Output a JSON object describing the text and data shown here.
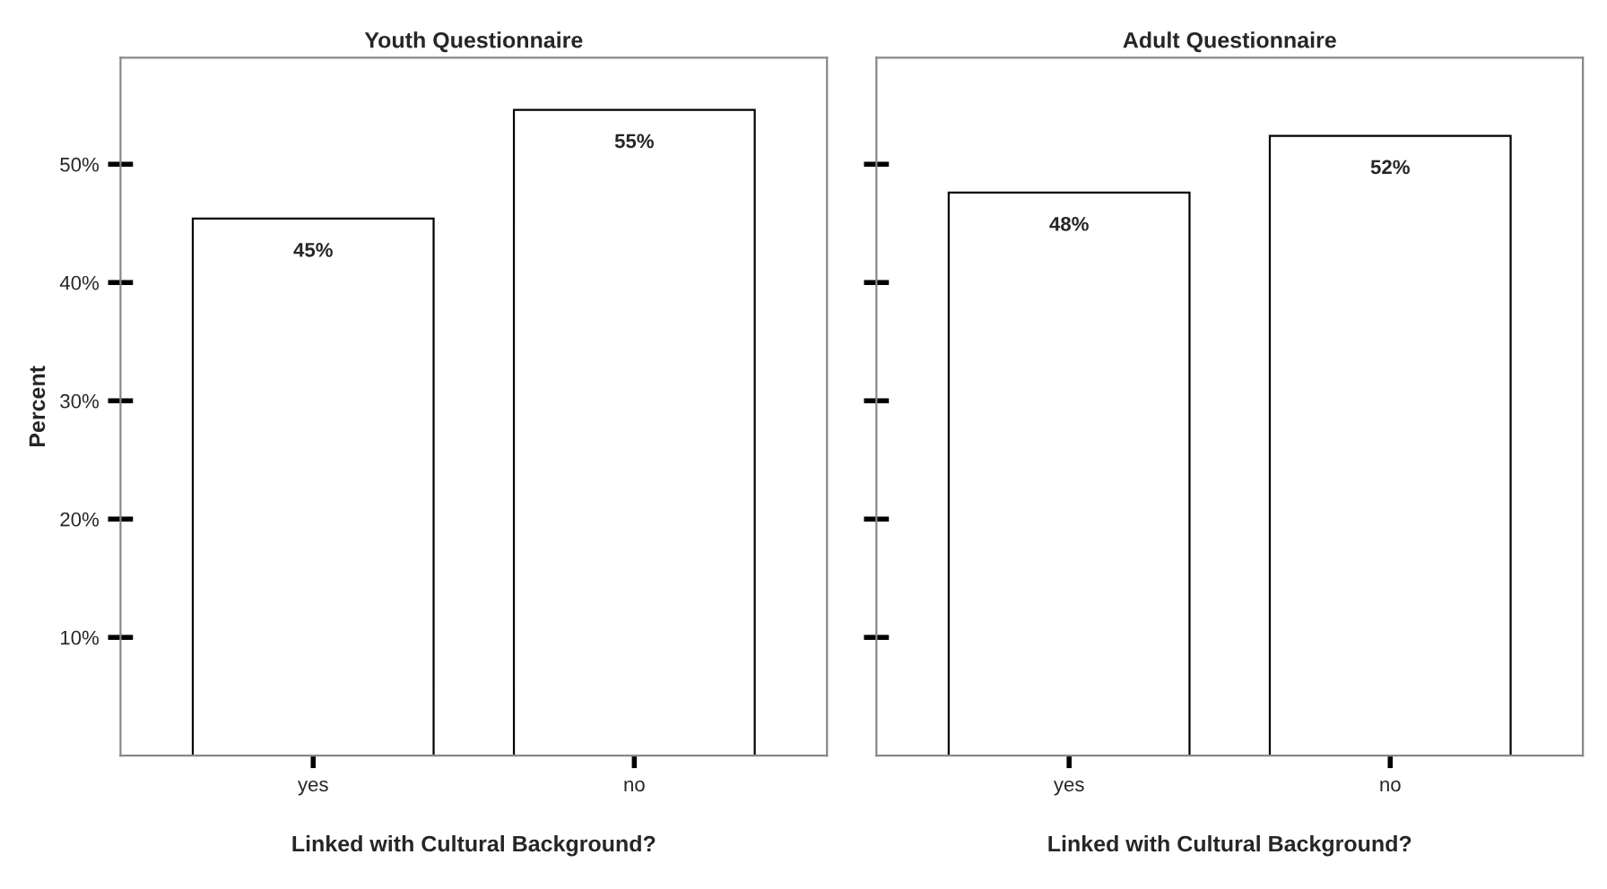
{
  "chart_data": [
    {
      "type": "bar",
      "title": "Youth Questionnaire",
      "xlabel": "Linked with Cultural Background?",
      "ylabel": "Percent",
      "categories": [
        "yes",
        "no"
      ],
      "values": [
        45.4,
        54.6
      ],
      "value_labels": [
        "45%",
        "55%"
      ],
      "color": "#ffffff",
      "ylim": [
        0,
        59
      ],
      "yticks": [
        {
          "value": 10,
          "label": "10%"
        },
        {
          "value": 20,
          "label": "20%"
        },
        {
          "value": 30,
          "label": "30%"
        },
        {
          "value": 40,
          "label": "40%"
        },
        {
          "value": 50,
          "label": "50%"
        }
      ],
      "grid": false,
      "legend": false
    },
    {
      "type": "bar",
      "title": "Adult Questionnaire",
      "xlabel": "Linked with Cultural Background?",
      "categories": [
        "yes",
        "no"
      ],
      "values": [
        47.6,
        52.4
      ],
      "value_labels": [
        "48%",
        "52%"
      ],
      "color": "#ffffff",
      "ylim": [
        0,
        59
      ],
      "yticks": [
        {
          "value": 10,
          "label": null
        },
        {
          "value": 20,
          "label": null
        },
        {
          "value": 30,
          "label": null
        },
        {
          "value": 40,
          "label": null
        },
        {
          "value": 50,
          "label": null
        }
      ],
      "tick_labels": "x",
      "grid": false,
      "legend": false
    }
  ]
}
